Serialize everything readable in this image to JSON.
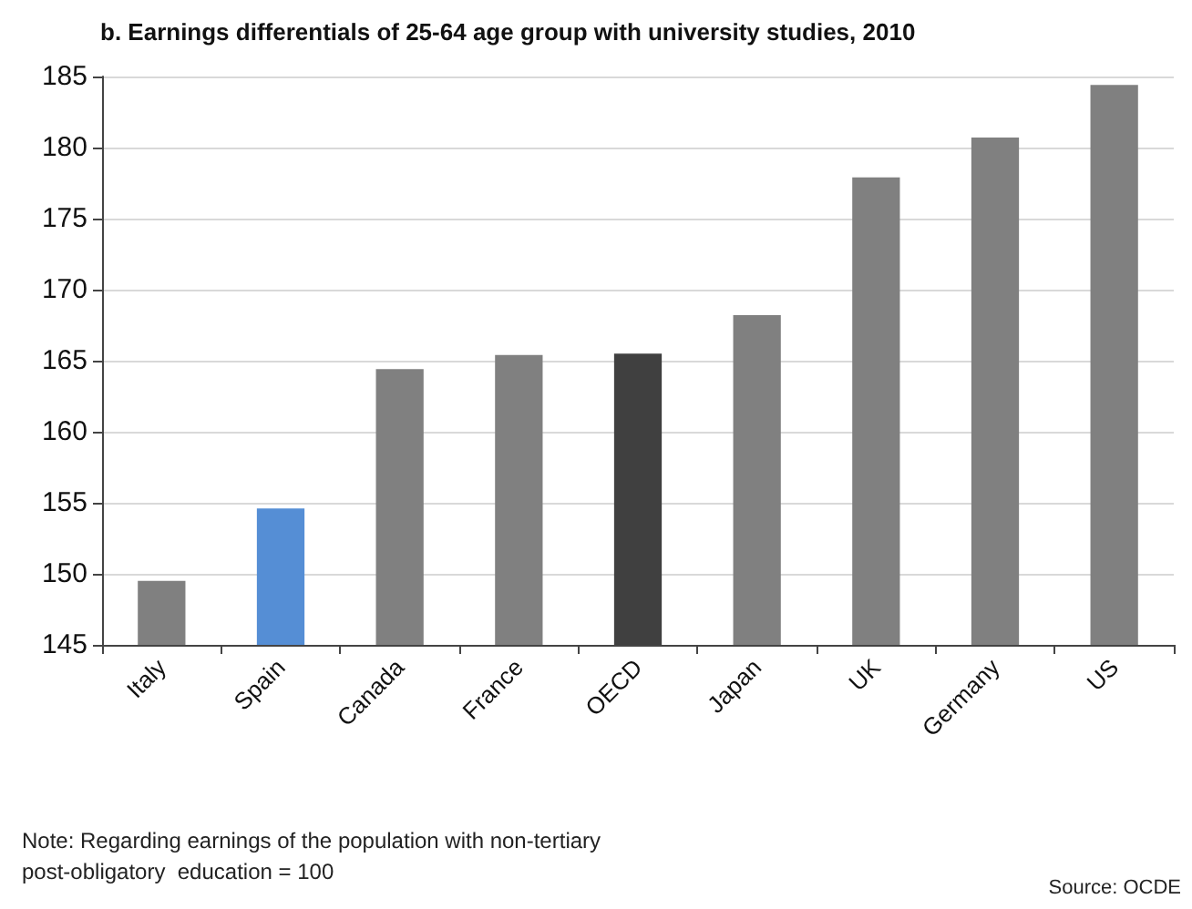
{
  "chart_data": {
    "type": "bar",
    "title": "b. Earnings differentials of 25-64 age group with university studies, 2010",
    "categories": [
      "Italy",
      "Spain",
      "Canada",
      "France",
      "OECD",
      "Japan",
      "UK",
      "Germany",
      "US"
    ],
    "values": [
      149.5,
      154.6,
      164.4,
      165.4,
      165.5,
      168.2,
      177.9,
      180.7,
      184.4
    ],
    "colors": [
      "#808080",
      "#558ed5",
      "#808080",
      "#808080",
      "#404040",
      "#808080",
      "#808080",
      "#808080",
      "#808080"
    ],
    "ylim": [
      145,
      185
    ],
    "yticks": [
      145,
      150,
      155,
      160,
      165,
      170,
      175,
      180,
      185
    ],
    "grid": "y",
    "annotations": [
      "Note: Regarding earnings of the population with non-tertiary\npost-obligatory  education = 100",
      "Source: OCDE"
    ]
  }
}
